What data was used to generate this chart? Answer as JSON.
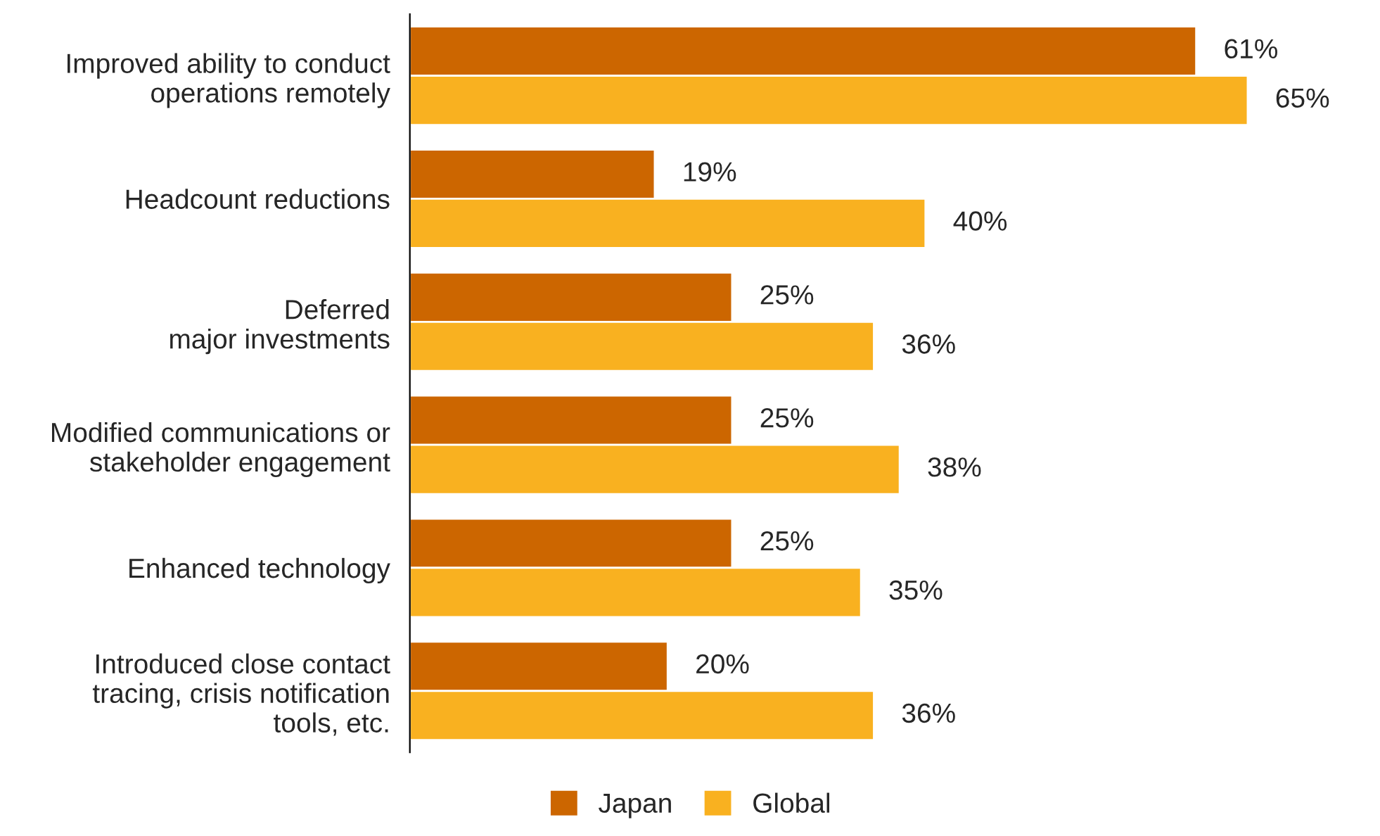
{
  "chart_data": {
    "type": "bar",
    "orientation": "horizontal",
    "legend": "bottom",
    "grid": false,
    "tick_labels": "y",
    "categories": [
      "Improved ability to conduct\noperations remotely",
      "Headcount reductions",
      "Deferred\nmajor investments",
      "Modified communications or\nstakeholder engagement",
      "Enhanced technology",
      "Introduced close contact\ntracing, crisis notification\ntools, etc."
    ],
    "series": [
      {
        "name": "Japan",
        "color": "#cc6600",
        "values": [
          61,
          19,
          25,
          25,
          25,
          20
        ],
        "value_labels": [
          "61%",
          "19%",
          "25%",
          "25%",
          "25%",
          "20%"
        ]
      },
      {
        "name": "Global",
        "color": "#f9b120",
        "values": [
          65,
          40,
          36,
          38,
          35,
          36
        ],
        "value_labels": [
          "65%",
          "40%",
          "36%",
          "38%",
          "35%",
          "36%"
        ]
      }
    ]
  }
}
